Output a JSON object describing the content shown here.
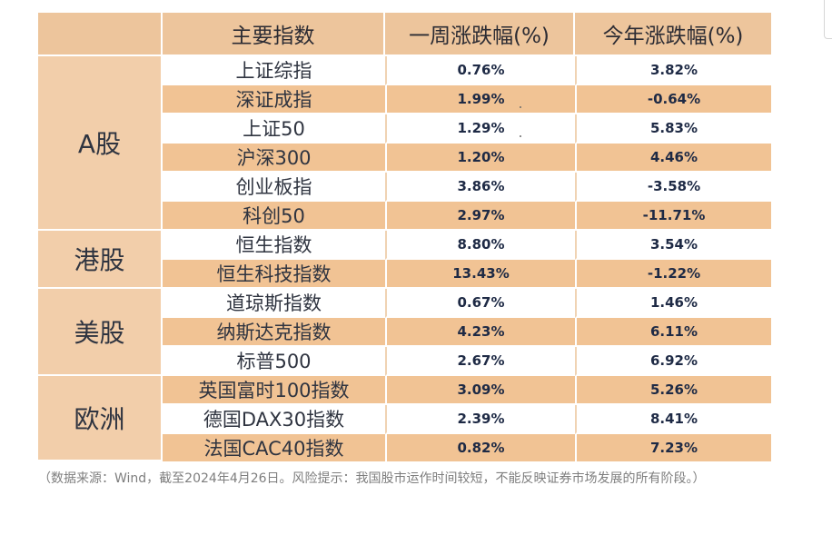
{
  "table": {
    "headers": {
      "region": "",
      "name": "主要指数",
      "week": "一周涨跌幅(%)",
      "ytd": "今年涨跌幅(%)"
    },
    "groups": [
      {
        "region": "A股",
        "rows": [
          {
            "name": "上证综指",
            "week": "0.76%",
            "ytd": "3.82%"
          },
          {
            "name": "深证成指",
            "week": "1.99%",
            "ytd": "-0.64%"
          },
          {
            "name": "上证50",
            "week": "1.29%",
            "ytd": "5.83%"
          },
          {
            "name": "沪深300",
            "week": "1.20%",
            "ytd": "4.46%"
          },
          {
            "name": "创业板指",
            "week": "3.86%",
            "ytd": "-3.58%"
          },
          {
            "name": "科创50",
            "week": "2.97%",
            "ytd": "-11.71%"
          }
        ]
      },
      {
        "region": "港股",
        "rows": [
          {
            "name": "恒生指数",
            "week": "8.80%",
            "ytd": "3.54%"
          },
          {
            "name": "恒生科技指数",
            "week": "13.43%",
            "ytd": "-1.22%"
          }
        ]
      },
      {
        "region": "美股",
        "rows": [
          {
            "name": "道琼斯指数",
            "week": "0.67%",
            "ytd": "1.46%"
          },
          {
            "name": "纳斯达克指数",
            "week": "4.23%",
            "ytd": "6.11%"
          },
          {
            "name": "标普500",
            "week": "2.67%",
            "ytd": "6.92%"
          }
        ]
      },
      {
        "region": "欧洲",
        "rows": [
          {
            "name": "英国富时100指数",
            "week": "3.09%",
            "ytd": "5.26%"
          },
          {
            "name": "德国DAX30指数",
            "week": "2.39%",
            "ytd": "8.41%"
          },
          {
            "name": "法国CAC40指数",
            "week": "0.82%",
            "ytd": "7.23%"
          }
        ]
      }
    ]
  },
  "footnote": "（数据来源：Wind，截至2024年4月26日。风险提示：我国股市运作时间较短，不能反映证券市场发展的所有阶段。）",
  "colors": {
    "header_bg": "#edc59c",
    "row_dark": "#f1c394",
    "row_light": "#ffffff",
    "region_bg": "#f2ceaa",
    "text": "#2f3440"
  }
}
